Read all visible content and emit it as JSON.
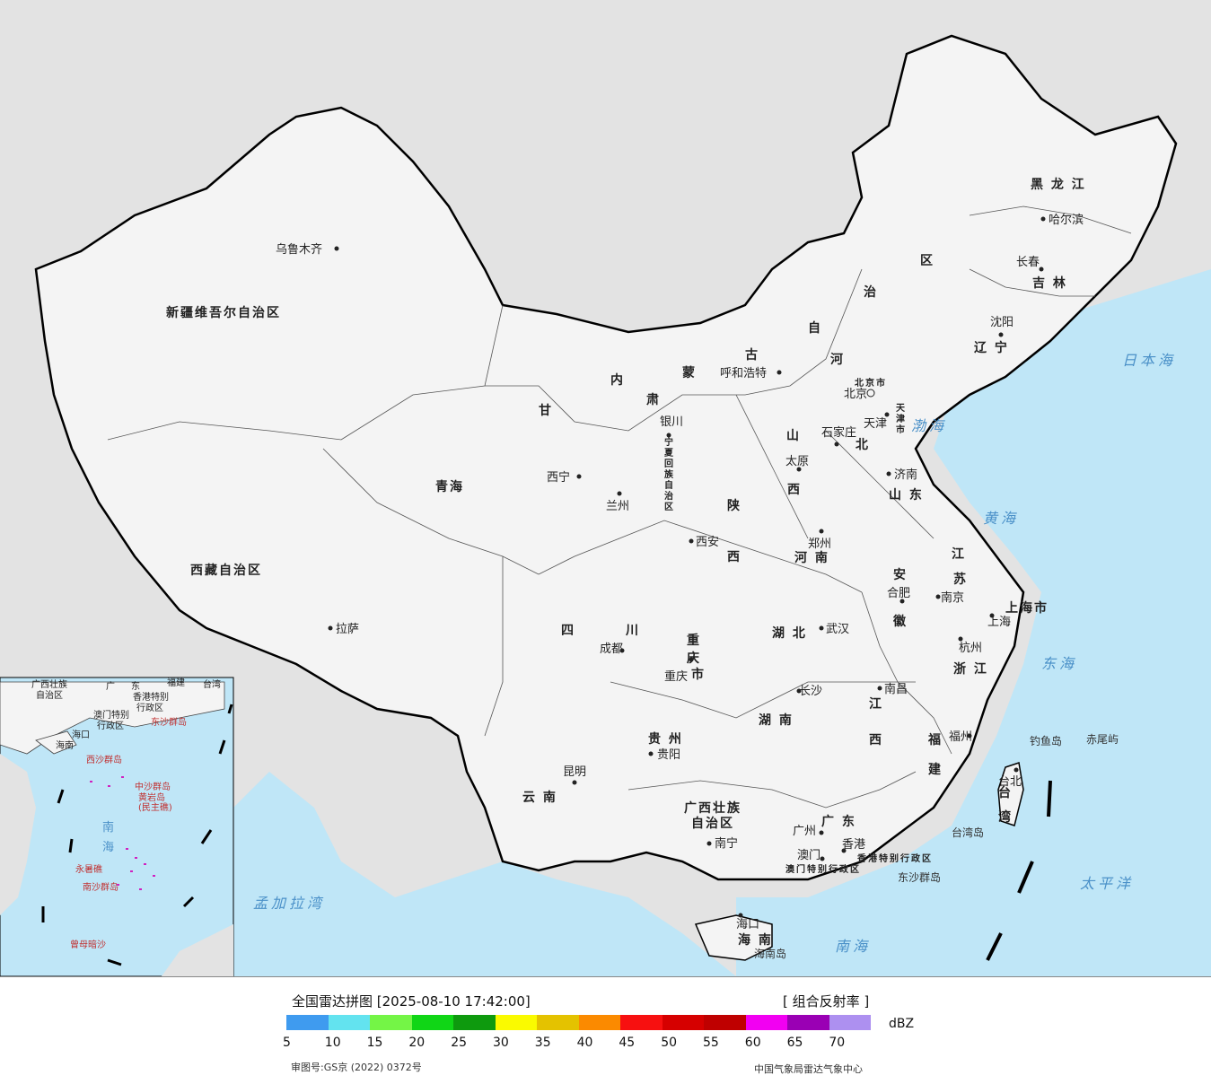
{
  "provinces": [
    {
      "name": "新疆维吾尔自治区"
    },
    {
      "name": "西藏自治区"
    },
    {
      "name": "青海"
    },
    {
      "name": "甘"
    },
    {
      "name": "肃"
    },
    {
      "name": "内"
    },
    {
      "name": "蒙"
    },
    {
      "name": "古"
    },
    {
      "name": "自"
    },
    {
      "name": "治"
    },
    {
      "name": "区"
    },
    {
      "name": "黑 龙 江"
    },
    {
      "name": "吉  林"
    },
    {
      "name": "辽  宁"
    },
    {
      "name": "河"
    },
    {
      "name": "北"
    },
    {
      "name": "山"
    },
    {
      "name": "西"
    },
    {
      "name": "陕"
    },
    {
      "name": "西"
    },
    {
      "name": "山  东"
    },
    {
      "name": "河  南"
    },
    {
      "name": "江"
    },
    {
      "name": "苏"
    },
    {
      "name": "安"
    },
    {
      "name": "徽"
    },
    {
      "name": "湖  北"
    },
    {
      "name": "四"
    },
    {
      "name": "川"
    },
    {
      "name": "贵  州"
    },
    {
      "name": "云  南"
    },
    {
      "name": "湖  南"
    },
    {
      "name": "江"
    },
    {
      "name": "西"
    },
    {
      "name": "浙  江"
    },
    {
      "name": "福"
    },
    {
      "name": "建"
    },
    {
      "name": "广  东"
    },
    {
      "name": "广西壮族"
    },
    {
      "name": "自治区"
    },
    {
      "name": "海  南"
    },
    {
      "name": "台"
    },
    {
      "name": "湾"
    },
    {
      "name": "宁"
    },
    {
      "name": "夏"
    },
    {
      "name": "回"
    },
    {
      "name": "族"
    },
    {
      "name": "自"
    },
    {
      "name": "治"
    },
    {
      "name": "区"
    },
    {
      "name": "重"
    },
    {
      "name": "庆"
    },
    {
      "name": "市"
    },
    {
      "name": "上海市"
    },
    {
      "name": "北京市"
    },
    {
      "name": "天"
    },
    {
      "name": "津"
    },
    {
      "name": "市"
    },
    {
      "name": "香港特别行政区"
    },
    {
      "name": "澳门特别行政区"
    }
  ],
  "cities": [
    {
      "name": "乌鲁木齐"
    },
    {
      "name": "拉萨"
    },
    {
      "name": "西宁"
    },
    {
      "name": "兰州"
    },
    {
      "name": "银川"
    },
    {
      "name": "呼和浩特"
    },
    {
      "name": "北京"
    },
    {
      "name": "天津"
    },
    {
      "name": "石家庄"
    },
    {
      "name": "太原"
    },
    {
      "name": "济南"
    },
    {
      "name": "郑州"
    },
    {
      "name": "西安"
    },
    {
      "name": "合肥"
    },
    {
      "name": "南京"
    },
    {
      "name": "上海"
    },
    {
      "name": "杭州"
    },
    {
      "name": "武汉"
    },
    {
      "name": "成都"
    },
    {
      "name": "重庆"
    },
    {
      "name": "贵阳"
    },
    {
      "name": "昆明"
    },
    {
      "name": "长沙"
    },
    {
      "name": "南昌"
    },
    {
      "name": "福州"
    },
    {
      "name": "台北"
    },
    {
      "name": "广州"
    },
    {
      "name": "香港"
    },
    {
      "name": "澳门"
    },
    {
      "name": "南宁"
    },
    {
      "name": "海口"
    },
    {
      "name": "沈阳"
    },
    {
      "name": "长春"
    },
    {
      "name": "哈尔滨"
    }
  ],
  "seas": [
    {
      "name": "日本海"
    },
    {
      "name": "渤海"
    },
    {
      "name": "黄海"
    },
    {
      "name": "东海"
    },
    {
      "name": "太平洋"
    },
    {
      "name": "南海"
    },
    {
      "name": "孟加拉湾"
    }
  ],
  "islands": [
    {
      "name": "钓鱼岛"
    },
    {
      "name": "赤尾屿"
    },
    {
      "name": "台湾岛"
    },
    {
      "name": "东沙群岛"
    },
    {
      "name": "海南岛"
    }
  ],
  "inset": {
    "labels": [
      "广西壮族",
      "自治区",
      "广",
      "东",
      "福建",
      "台湾",
      "澳门特别",
      "行政区",
      "香港特别",
      "行政区",
      "海口",
      "海南",
      "南",
      "海",
      "东沙群岛",
      "西沙群岛",
      "中沙群岛",
      "黄岩岛",
      "(民主礁)",
      "永暑礁",
      "南沙群岛",
      "曾母暗沙"
    ]
  },
  "legend": {
    "title": "全国雷达拼图 [2025-08-10 17:42:00]",
    "product": "[ 组合反射率 ]",
    "unit": "dBZ",
    "ticks": [
      "5",
      "10",
      "15",
      "20",
      "25",
      "30",
      "35",
      "40",
      "45",
      "50",
      "55",
      "60",
      "65",
      "70"
    ],
    "colors": [
      "#3f9bef",
      "#63e3ef",
      "#74f546",
      "#10d616",
      "#0e9a0e",
      "#fafa00",
      "#e4c200",
      "#fb8a00",
      "#f71010",
      "#d60000",
      "#bf0000",
      "#f200f2",
      "#9a00b4",
      "#ad90f0"
    ],
    "approval": "审图号:GS京 (2022) 0372号",
    "source": "中国气象局雷达气象中心"
  }
}
